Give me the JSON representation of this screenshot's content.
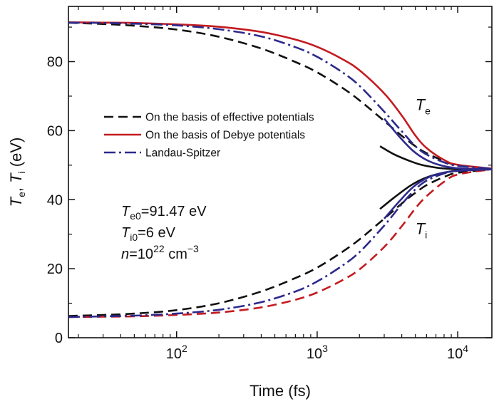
{
  "chart_data": {
    "type": "line",
    "xscale": "log",
    "xlim": [
      17,
      17500
    ],
    "ylim": [
      0,
      96
    ],
    "xlabel": "Time (fs)",
    "ylabel": {
      "t1": "T",
      "s1": "e",
      "sep": ", ",
      "t2": "T",
      "s2": "i",
      "unit": " (eV)"
    },
    "xticks": [
      {
        "value": 100,
        "base": "10",
        "exp": "2"
      },
      {
        "value": 1000,
        "base": "10",
        "exp": "3"
      },
      {
        "value": 10000,
        "base": "10",
        "exp": "4"
      }
    ],
    "yticks": [
      0,
      20,
      40,
      60,
      80
    ],
    "grid": false,
    "legend_position": "center-left",
    "series": [
      {
        "name": "On the basis of effective potentials",
        "color": "#111111",
        "style": "dash",
        "legend": true,
        "x": [
          17,
          30,
          50,
          100,
          200,
          400,
          700,
          1000,
          1500,
          2000,
          3000,
          4000,
          5000,
          6000,
          8000,
          10000,
          17500
        ],
        "y": [
          91.3,
          90.9,
          90.4,
          89.3,
          87.2,
          83.8,
          79.9,
          76.9,
          72.5,
          68.8,
          62.8,
          58.5,
          55.5,
          53.5,
          51.2,
          50.0,
          49.0
        ]
      },
      {
        "name": "On the basis of Debye potentials",
        "color": "#c41a1f",
        "style": "solid",
        "legend": true,
        "x": [
          17,
          30,
          50,
          100,
          200,
          400,
          700,
          1000,
          1500,
          2000,
          3000,
          4000,
          5000,
          6000,
          8000,
          10000,
          17500
        ],
        "y": [
          91.4,
          91.3,
          91.2,
          90.8,
          90.1,
          88.6,
          86.4,
          84.3,
          80.8,
          77.5,
          70.8,
          64.4,
          58.6,
          55.0,
          51.5,
          50.1,
          49.0
        ]
      },
      {
        "name": "Landau-Spitzer",
        "color": "#2d2a8c",
        "style": "dashdot",
        "legend": true,
        "x": [
          17,
          30,
          50,
          100,
          200,
          400,
          700,
          1000,
          1500,
          2000,
          3000,
          4000,
          5000,
          6000,
          8000,
          10000,
          17500
        ],
        "y": [
          91.3,
          91.2,
          91.0,
          90.5,
          89.4,
          87.3,
          84.2,
          81.4,
          77.0,
          73.0,
          65.5,
          59.8,
          55.5,
          53.1,
          50.8,
          49.8,
          49.0
        ]
      },
      {
        "name": "",
        "color": "#111111",
        "style": "dash",
        "legend": false,
        "x": [
          17,
          30,
          50,
          100,
          200,
          400,
          700,
          1000,
          1500,
          2000,
          3000,
          4000,
          5000,
          6000,
          8000,
          10000,
          17500
        ],
        "y": [
          6.3,
          6.6,
          7.0,
          8.0,
          10.0,
          13.4,
          17.3,
          20.3,
          24.8,
          28.5,
          34.5,
          38.9,
          42.0,
          44.2,
          46.6,
          47.8,
          48.8
        ]
      },
      {
        "name": "",
        "color": "#c41a1f",
        "style": "dash",
        "legend": false,
        "x": [
          17,
          30,
          50,
          100,
          200,
          400,
          700,
          1000,
          1500,
          2000,
          3000,
          4000,
          5000,
          6000,
          8000,
          10000,
          17500
        ],
        "y": [
          6.0,
          6.1,
          6.2,
          6.6,
          7.3,
          8.8,
          11.0,
          13.1,
          16.6,
          19.8,
          26.3,
          32.3,
          37.5,
          41.0,
          45.2,
          47.3,
          48.8
        ]
      },
      {
        "name": "",
        "color": "#2d2a8c",
        "style": "dashdot",
        "legend": false,
        "x": [
          17,
          30,
          50,
          100,
          200,
          400,
          700,
          1000,
          1500,
          2000,
          3000,
          4000,
          5000,
          6000,
          8000,
          10000,
          17500
        ],
        "y": [
          6.0,
          6.2,
          6.4,
          7.0,
          8.1,
          10.3,
          13.4,
          16.3,
          20.8,
          24.8,
          32.5,
          38.7,
          43.0,
          45.5,
          47.6,
          48.3,
          48.8
        ]
      },
      {
        "name": "",
        "color": "#111111",
        "style": "solid",
        "legend": false,
        "x": [
          2800,
          3500,
          4500,
          5500,
          7000,
          9000,
          12000,
          17500
        ],
        "y": [
          55.5,
          53.2,
          51.3,
          50.1,
          49.3,
          48.9,
          48.8,
          48.8
        ]
      },
      {
        "name": "",
        "color": "#111111",
        "style": "solid",
        "legend": false,
        "x": [
          2800,
          3500,
          4500,
          5500,
          7000,
          9000,
          12000,
          17500
        ],
        "y": [
          37.3,
          40.5,
          43.8,
          45.8,
          47.3,
          48.2,
          48.6,
          48.8
        ]
      },
      {
        "name": "",
        "color": "#2d2a8c",
        "style": "solid",
        "legend": false,
        "x": [
          3000,
          3800,
          4800,
          6000,
          7500,
          9500,
          12500,
          17500
        ],
        "y": [
          63.5,
          58.5,
          54.2,
          51.5,
          50.0,
          49.2,
          48.9,
          48.8
        ]
      },
      {
        "name": "",
        "color": "#2d2a8c",
        "style": "solid",
        "legend": false,
        "x": [
          3000,
          3800,
          4800,
          6000,
          7500,
          9500,
          12500,
          17500
        ],
        "y": [
          34.5,
          39.3,
          43.6,
          46.2,
          47.6,
          48.3,
          48.6,
          48.8
        ]
      }
    ],
    "annotations": [
      {
        "id": "te",
        "text": "T",
        "sub": "e",
        "x": 5000,
        "y": 66
      },
      {
        "id": "ti",
        "text": "T",
        "sub": "i",
        "x": 5000,
        "y": 30
      }
    ],
    "params": [
      {
        "sym": "T",
        "sub": "e0",
        "rest": "=91.47 eV"
      },
      {
        "sym": "T",
        "sub": "i0",
        "rest": "=6 eV"
      },
      {
        "sym": "n",
        "rest": "=10",
        "sup": "22",
        "tail": " cm",
        "sup2": "−3"
      }
    ]
  }
}
